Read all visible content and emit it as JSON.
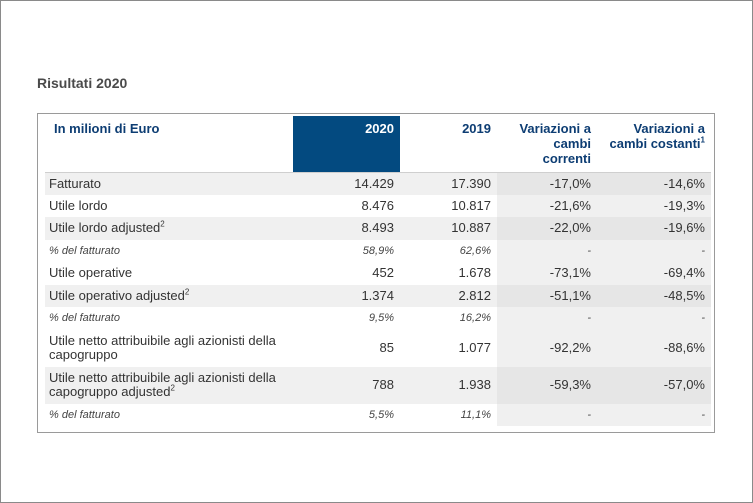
{
  "title": "Risultati 2020",
  "table": {
    "headers": {
      "label": "In milioni di Euro",
      "y2020": "2020",
      "y2019": "2019",
      "var_correnti": "Variazioni a cambi correnti",
      "var_costanti": "Variazioni a cambi costanti",
      "var_costanti_note": "1"
    },
    "rows": [
      {
        "label": "Fatturato",
        "note": "",
        "v2020": "14.429",
        "v2019": "17.390",
        "vcr": "-17,0%",
        "vco": "-14,6%"
      },
      {
        "label": "Utile lordo",
        "note": "",
        "v2020": "8.476",
        "v2019": "10.817",
        "vcr": "-21,6%",
        "vco": "-19,3%"
      },
      {
        "label": "Utile lordo adjusted",
        "note": "2",
        "v2020": "8.493",
        "v2019": "10.887",
        "vcr": "-22,0%",
        "vco": "-19,6%"
      },
      {
        "label": "% del fatturato",
        "note": "",
        "v2020": "58,9%",
        "v2019": "62,6%",
        "vcr": "-",
        "vco": "-"
      },
      {
        "label": "Utile operative",
        "note": "",
        "v2020": "452",
        "v2019": "1.678",
        "vcr": "-73,1%",
        "vco": "-69,4%"
      },
      {
        "label": "Utile operativo adjusted",
        "note": "2",
        "v2020": "1.374",
        "v2019": "2.812",
        "vcr": "-51,1%",
        "vco": "-48,5%"
      },
      {
        "label": "% del fatturato",
        "note": "",
        "v2020": "9,5%",
        "v2019": "16,2%",
        "vcr": "-",
        "vco": "-"
      },
      {
        "label": "Utile netto attribuibile agli azionisti della capogruppo",
        "note": "",
        "v2020": "85",
        "v2019": "1.077",
        "vcr": "-92,2%",
        "vco": "-88,6%"
      },
      {
        "label": "Utile netto attribuibile agli azionisti della capogruppo adjusted",
        "note": "2",
        "v2020": "788",
        "v2019": "1.938",
        "vcr": "-59,3%",
        "vco": "-57,0%"
      },
      {
        "label": "% del fatturato",
        "note": "",
        "v2020": "5,5%",
        "v2019": "11,1%",
        "vcr": "-",
        "vco": "-"
      }
    ]
  }
}
